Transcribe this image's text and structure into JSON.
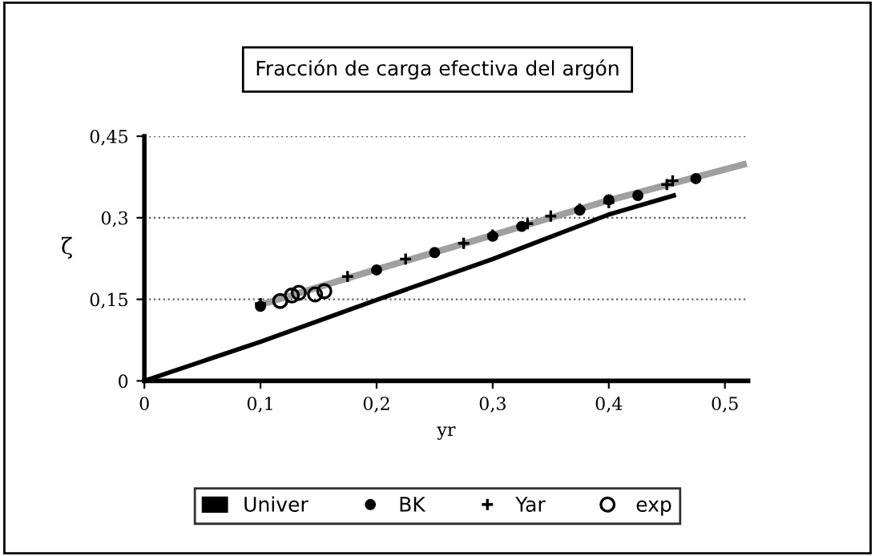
{
  "chart_data": {
    "type": "line",
    "title": "Fracción de carga efectiva del argón",
    "xlabel": "yr",
    "ylabel": "ζ",
    "xlim": [
      0,
      0.52
    ],
    "ylim": [
      0,
      0.45
    ],
    "xticks": [
      0,
      {
        "value": 0.1,
        "label": "0,1"
      },
      {
        "value": 0.2,
        "label": "0,2"
      },
      {
        "value": 0.3,
        "label": "0,3"
      },
      {
        "value": 0.4,
        "label": "0,4"
      },
      {
        "value": 0.5,
        "label": "0,5"
      }
    ],
    "yticks": [
      0,
      {
        "value": 0.15,
        "label": "0,15"
      },
      {
        "value": 0.3,
        "label": "0,3"
      },
      {
        "value": 0.45,
        "label": "0,45"
      }
    ],
    "grid": "y",
    "legend": "bottom",
    "series": [
      {
        "color": "#a0a0a0",
        "x": [
          0.1,
          0.2,
          0.3,
          0.4,
          0.516
        ],
        "values": [
          0.14,
          0.205,
          0.268,
          0.332,
          0.398
        ]
      },
      {
        "name": "Univer",
        "color": "#000000",
        "x": [
          0,
          0.1,
          0.2,
          0.3,
          0.4,
          0.456
        ],
        "values": [
          0,
          0.072,
          0.149,
          0.224,
          0.306,
          0.341
        ]
      },
      {
        "name": "BK",
        "type": "scatter",
        "marker": "circle",
        "color": "#000000",
        "x": [
          0.1,
          0.2,
          0.25,
          0.3,
          0.325,
          0.375,
          0.4,
          0.425,
          0.475
        ],
        "values": [
          0.137,
          0.204,
          0.236,
          0.266,
          0.284,
          0.314,
          0.333,
          0.341,
          0.372
        ]
      },
      {
        "name": "Yar",
        "type": "scatter",
        "marker": "cross",
        "color": "#000000",
        "x": [
          0.1,
          0.175,
          0.225,
          0.275,
          0.3,
          0.33,
          0.35,
          0.375,
          0.4,
          0.45,
          0.455
        ],
        "values": [
          0.142,
          0.192,
          0.224,
          0.253,
          0.268,
          0.289,
          0.303,
          0.316,
          0.328,
          0.361,
          0.368
        ]
      },
      {
        "name": "exp",
        "type": "scatter",
        "marker": "open circle",
        "color": "#000000",
        "x": [
          0.117,
          0.127,
          0.133,
          0.147,
          0.155
        ],
        "values": [
          0.147,
          0.157,
          0.162,
          0.159,
          0.165
        ]
      }
    ]
  }
}
